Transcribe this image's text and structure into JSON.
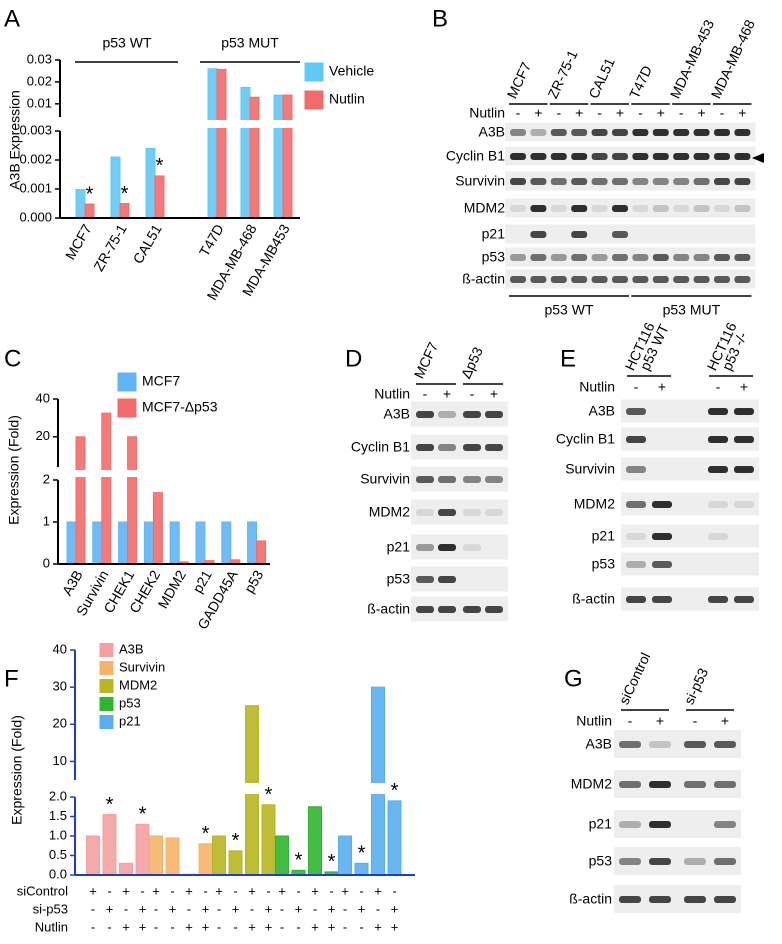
{
  "chart_data": [
    {
      "label": "A",
      "type": "bar",
      "ylabel": "A3B Expression",
      "categories": [
        "MCF7",
        "ZR-75-1",
        "CAL51",
        "T47D",
        "MDA-MB-468",
        "MDA-MB453"
      ],
      "series": [
        {
          "name": "Vehicle",
          "color": "#62c8f4",
          "values": [
            0.00098,
            0.0021,
            0.0024,
            0.026,
            0.0175,
            0.014
          ]
        },
        {
          "name": "Nutlin",
          "color": "#f26b6b",
          "values": [
            0.00048,
            0.0005,
            0.00145,
            0.0257,
            0.013,
            0.014
          ],
          "markers": [
            "*",
            "*",
            "*",
            null,
            null,
            null
          ]
        }
      ],
      "y_segments": [
        {
          "ylim": [
            0,
            0.003
          ],
          "yticks": [
            {
              "value": 0,
              "label": "0.000"
            },
            0.001,
            0.002,
            0.003
          ]
        },
        {
          "ylim": [
            0.004,
            0.03
          ],
          "yticks": [
            0.01,
            0.02,
            0.03
          ]
        }
      ],
      "annotations": [
        "p53 WT",
        "p53 MUT"
      ]
    },
    {
      "label": "C",
      "type": "bar",
      "ylabel": "Expression (Fold)",
      "categories": [
        "A3B",
        "Survivin",
        "CHEK1",
        "CHEK2",
        "MDM2",
        "p21",
        "GADD45A",
        "p53"
      ],
      "series": [
        {
          "name": "MCF7",
          "color": "#62b4f4",
          "values": [
            1,
            1,
            1,
            1,
            1,
            1,
            1,
            1
          ]
        },
        {
          "name": "MCF7-Δp53",
          "color": "#f26b6b",
          "values": [
            20,
            32.5,
            20,
            1.7,
            0.05,
            0.08,
            0.1,
            0.55
          ]
        }
      ],
      "y_segments": [
        {
          "ylim": [
            0,
            2
          ],
          "yticks": [
            0,
            1,
            2
          ]
        },
        {
          "ylim": [
            4,
            40
          ],
          "yticks": [
            20,
            40
          ]
        }
      ]
    },
    {
      "label": "F",
      "type": "bar",
      "ylabel": "Expression (Fold)",
      "axis_color": "#1f3fbf",
      "series": [
        {
          "name": "A3B",
          "color": "#f4a0a0",
          "values": [
            1.0,
            1.55,
            0.3,
            1.3
          ],
          "markers": [
            null,
            "*",
            null,
            "*"
          ]
        },
        {
          "name": "Survivin",
          "color": "#f7b26a",
          "values": [
            1.0,
            0.95,
            0.02,
            0.8
          ],
          "markers": [
            null,
            null,
            null,
            "*"
          ]
        },
        {
          "name": "MDM2",
          "color": "#b8b622",
          "values": [
            1.0,
            0.62,
            25,
            1.8
          ],
          "markers": [
            null,
            "*",
            null,
            "*"
          ]
        },
        {
          "name": "p53",
          "color": "#2db52d",
          "values": [
            1.0,
            0.12,
            1.75,
            0.08
          ],
          "markers": [
            null,
            "*",
            null,
            "*"
          ]
        },
        {
          "name": "p21",
          "color": "#5aaef0",
          "values": [
            1.0,
            0.3,
            30,
            1.9
          ],
          "markers": [
            null,
            "*",
            null,
            "*"
          ]
        }
      ],
      "conditions": [
        {
          "label": "siControl",
          "values": [
            "+",
            "-",
            "+",
            "-"
          ]
        },
        {
          "label": "si-p53",
          "values": [
            "-",
            "+",
            "-",
            "+"
          ]
        },
        {
          "label": "Nutlin",
          "values": [
            "-",
            "-",
            "+",
            "+"
          ]
        }
      ],
      "y_segments": [
        {
          "ylim": [
            0,
            2
          ],
          "yticks": [
            {
              "value": 0,
              "label": "0.0"
            },
            0.5,
            {
              "value": 1,
              "label": "1.0"
            },
            1.5,
            {
              "value": 2,
              "label": "2.0"
            }
          ]
        },
        {
          "ylim": [
            5,
            40
          ],
          "yticks": [
            10,
            20,
            30,
            40
          ]
        }
      ]
    }
  ],
  "blots": [
    {
      "label": "B",
      "lane_groups": [
        [
          "MCF7"
        ],
        [
          "ZR-75-1"
        ],
        [
          "CAL51"
        ],
        [
          "T47D"
        ],
        [
          "MDA-MB-453"
        ],
        [
          "MDA-MB-468"
        ]
      ],
      "treatment": "Nutlin",
      "lanes": [
        "-",
        "+",
        "-",
        "+",
        "-",
        "+",
        "-",
        "+",
        "-",
        "+",
        "-",
        "+"
      ],
      "rows": [
        "A3B",
        "Cyclin B1",
        "Survivin",
        "MDM2",
        "p21",
        "p53",
        "ß-actin"
      ],
      "groups": [
        "p53 WT",
        "p53 MUT"
      ]
    },
    {
      "label": "D",
      "lane_groups": [
        [
          "MCF7"
        ],
        [
          "Δp53"
        ]
      ],
      "treatment": "Nutlin",
      "lanes": [
        "-",
        "+",
        "-",
        "+"
      ],
      "rows": [
        "A3B",
        "Cyclin B1",
        "Survivin",
        "MDM2",
        "p21",
        "p53",
        "ß-actin"
      ]
    },
    {
      "label": "E",
      "lane_groups": [
        [
          "HCT116",
          "p53 WT"
        ],
        [
          "HCT116",
          "p53 -/-"
        ]
      ],
      "treatment": "Nutlin",
      "lanes": [
        "-",
        "+",
        "-",
        "+"
      ],
      "rows": [
        "A3B",
        "Cyclin B1",
        "Survivin",
        "MDM2",
        "p21",
        "p53",
        "ß-actin"
      ]
    },
    {
      "label": "G",
      "lane_groups": [
        [
          "siControl"
        ],
        [
          "si-p53"
        ]
      ],
      "treatment": "Nutlin",
      "lanes": [
        "-",
        "+",
        "-",
        "+"
      ],
      "rows": [
        "A3B",
        "MDM2",
        "p21",
        "p53",
        "ß-actin"
      ]
    }
  ]
}
